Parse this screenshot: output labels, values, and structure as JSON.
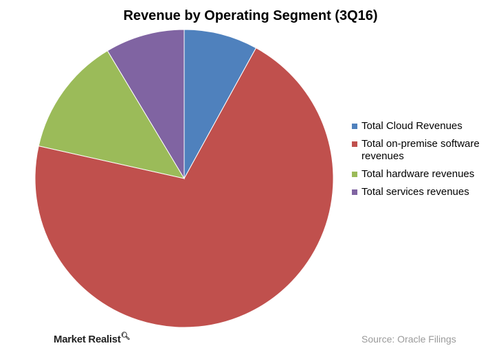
{
  "chart_data": {
    "type": "pie",
    "title": "Revenue by Operating Segment (3Q16)",
    "slices": [
      {
        "label": "Total Cloud Revenues",
        "value": 8.0,
        "color": "#4f81bd"
      },
      {
        "label": "Total on-premise software revenues",
        "value": 70.5,
        "color": "#c0504d"
      },
      {
        "label": "Total hardware revenues",
        "value": 12.9,
        "color": "#9bbb59"
      },
      {
        "label": "Total services revenues",
        "value": 8.6,
        "color": "#8064a2"
      }
    ],
    "legend_position": "right"
  },
  "legend": {
    "items": [
      {
        "label": "Total Cloud Revenues"
      },
      {
        "label": "Total on-premise software revenues"
      },
      {
        "label": "Total hardware revenues"
      },
      {
        "label": "Total services revenues"
      }
    ]
  },
  "footer": {
    "logo": "Market Realist",
    "source": "Source:  Oracle Filings"
  }
}
